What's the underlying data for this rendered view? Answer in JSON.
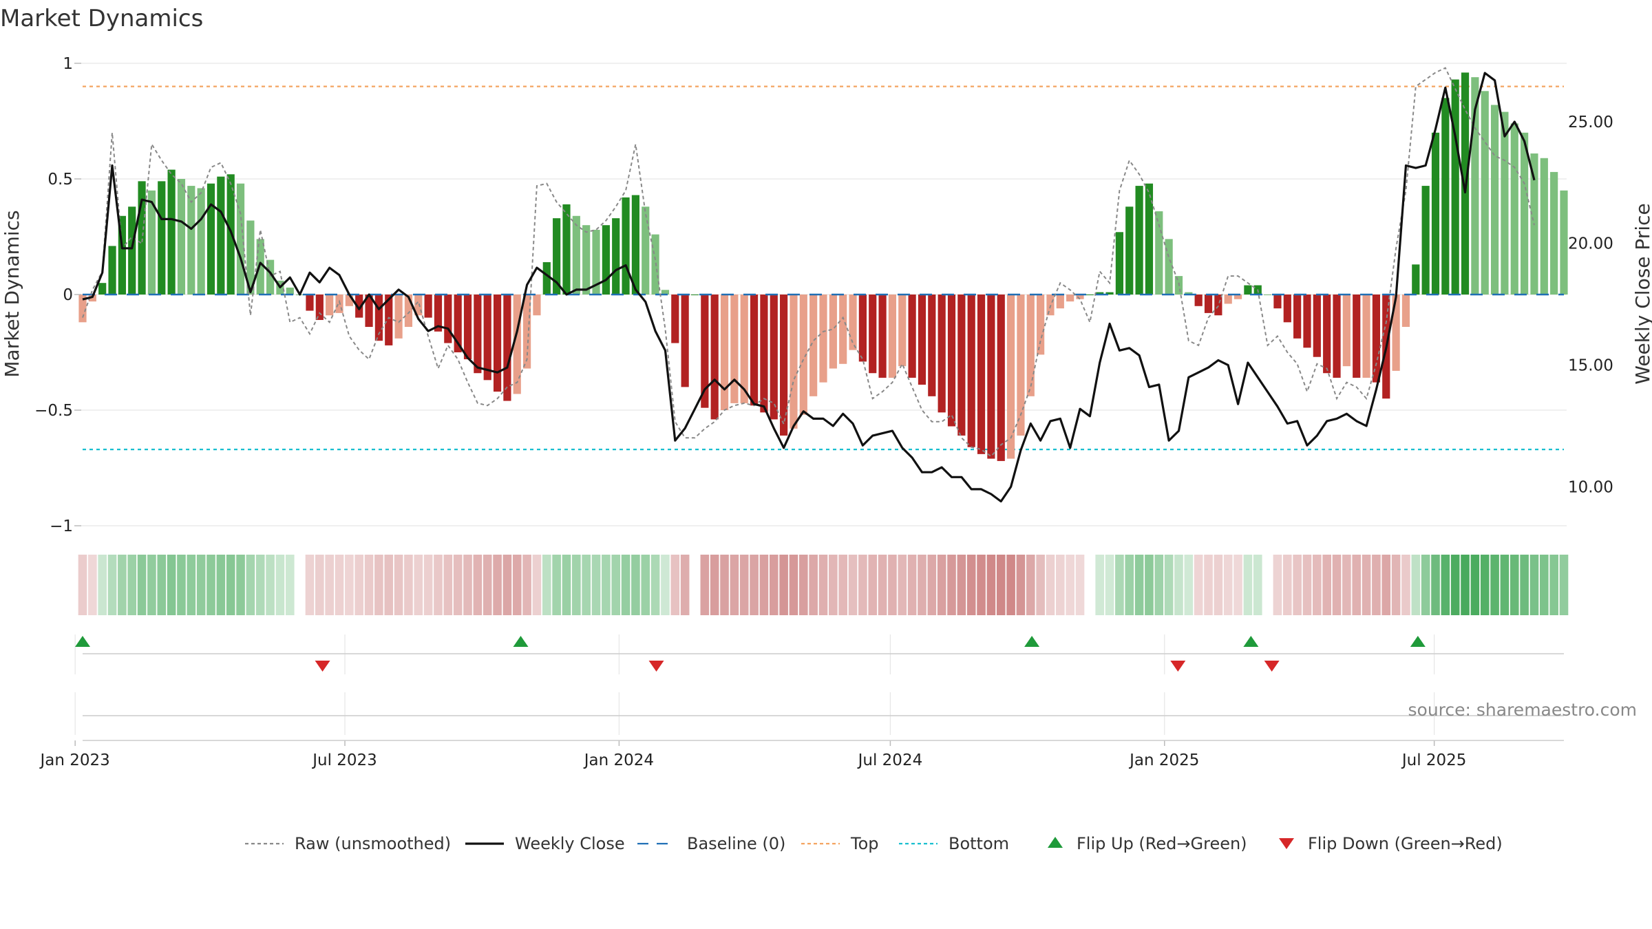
{
  "chart_data": {
    "type": "bar",
    "title": "Market Dynamics",
    "ylabel": "Market Dynamics",
    "y2label": "Weekly Close Price",
    "ylim": [
      -1,
      1
    ],
    "y2lim": [
      8.4,
      27.4
    ],
    "yticks": [
      -1,
      -0.5,
      0,
      0.5,
      1
    ],
    "ytick_labels": [
      "−1",
      "−0.5",
      "0",
      "0.5",
      "1"
    ],
    "y2ticks": [
      10,
      15,
      20,
      25
    ],
    "y2tick_labels": [
      "10.00",
      "15.00",
      "20.00",
      "25.00"
    ],
    "x_start": "2023-01-06",
    "x_end": "2025-09-26",
    "xticks": [
      "2023-01-01",
      "2023-07-01",
      "2024-01-01",
      "2024-07-01",
      "2025-01-01",
      "2025-07-01"
    ],
    "xtick_labels": [
      "Jan 2023",
      "Jul 2023",
      "Jan 2024",
      "Jul 2024",
      "Jan 2025",
      "Jul 2025"
    ],
    "top_level": 0.9,
    "bottom_level": -0.67,
    "grid": true,
    "legend_position": "bottom",
    "source_text": "source: sharemaestro.com",
    "smoothed_values": [
      -0.12,
      -0.03,
      0.05,
      0.21,
      0.34,
      0.38,
      0.49,
      0.45,
      0.49,
      0.54,
      0.5,
      0.47,
      0.46,
      0.48,
      0.51,
      0.52,
      0.48,
      0.32,
      0.24,
      0.15,
      0.06,
      0.03,
      0.0,
      -0.07,
      -0.11,
      -0.09,
      -0.08,
      -0.05,
      -0.1,
      -0.14,
      -0.2,
      -0.22,
      -0.19,
      -0.14,
      -0.09,
      -0.1,
      -0.16,
      -0.21,
      -0.25,
      -0.28,
      -0.34,
      -0.37,
      -0.42,
      -0.46,
      -0.43,
      -0.32,
      -0.09,
      0.14,
      0.33,
      0.39,
      0.34,
      0.3,
      0.28,
      0.3,
      0.33,
      0.42,
      0.43,
      0.38,
      0.26,
      0.02,
      -0.21,
      -0.4,
      0.0,
      -0.49,
      -0.54,
      -0.5,
      -0.47,
      -0.47,
      -0.48,
      -0.51,
      -0.54,
      -0.61,
      -0.58,
      -0.52,
      -0.44,
      -0.38,
      -0.32,
      -0.3,
      -0.24,
      -0.29,
      -0.34,
      -0.36,
      -0.36,
      -0.31,
      -0.36,
      -0.39,
      -0.44,
      -0.51,
      -0.57,
      -0.61,
      -0.66,
      -0.69,
      -0.71,
      -0.72,
      -0.71,
      -0.61,
      -0.44,
      -0.26,
      -0.09,
      -0.06,
      -0.03,
      -0.02,
      0.0,
      0.01,
      0.01,
      0.27,
      0.38,
      0.47,
      0.48,
      0.36,
      0.24,
      0.08,
      0.01,
      -0.05,
      -0.08,
      -0.09,
      -0.04,
      -0.02,
      0.04,
      0.04,
      0.0,
      -0.06,
      -0.12,
      -0.19,
      -0.23,
      -0.27,
      -0.34,
      -0.36,
      -0.31,
      -0.36,
      -0.36,
      -0.38,
      -0.45,
      -0.33,
      -0.14,
      0.13,
      0.47,
      0.7,
      0.85,
      0.93,
      0.96,
      0.94,
      0.88,
      0.82,
      0.79,
      0.74,
      0.7,
      0.61,
      0.59,
      0.53,
      0.45
    ],
    "raw_values": [
      -0.1,
      0.02,
      0.1,
      0.7,
      0.2,
      0.25,
      0.22,
      0.65,
      0.58,
      0.52,
      0.48,
      0.4,
      0.44,
      0.55,
      0.57,
      0.48,
      0.35,
      -0.09,
      0.28,
      0.08,
      0.1,
      -0.12,
      -0.1,
      -0.17,
      -0.08,
      -0.12,
      -0.03,
      -0.18,
      -0.24,
      -0.28,
      -0.17,
      -0.1,
      -0.12,
      -0.08,
      -0.03,
      -0.18,
      -0.32,
      -0.22,
      -0.28,
      -0.38,
      -0.47,
      -0.48,
      -0.45,
      -0.4,
      -0.38,
      -0.28,
      0.47,
      0.48,
      0.4,
      0.35,
      0.3,
      0.27,
      0.28,
      0.32,
      0.38,
      0.45,
      0.65,
      0.35,
      0.15,
      -0.15,
      -0.55,
      -0.62,
      -0.62,
      -0.58,
      -0.55,
      -0.5,
      -0.48,
      -0.47,
      -0.48,
      -0.45,
      -0.47,
      -0.56,
      -0.37,
      -0.28,
      -0.2,
      -0.16,
      -0.15,
      -0.1,
      -0.21,
      -0.28,
      -0.45,
      -0.42,
      -0.38,
      -0.3,
      -0.4,
      -0.5,
      -0.55,
      -0.55,
      -0.52,
      -0.62,
      -0.66,
      -0.67,
      -0.7,
      -0.65,
      -0.62,
      -0.52,
      -0.4,
      -0.2,
      -0.05,
      0.05,
      0.02,
      -0.02,
      -0.12,
      0.1,
      0.05,
      0.45,
      0.58,
      0.52,
      0.44,
      0.3,
      0.16,
      0.05,
      -0.2,
      -0.22,
      -0.1,
      -0.05,
      0.08,
      0.08,
      0.05,
      0.02,
      -0.22,
      -0.18,
      -0.25,
      -0.3,
      -0.42,
      -0.3,
      -0.32,
      -0.45,
      -0.38,
      -0.4,
      -0.45,
      -0.3,
      -0.12,
      0.2,
      0.45,
      0.9,
      0.93,
      0.96,
      0.98,
      0.89,
      0.8,
      0.72,
      0.66,
      0.6,
      0.58,
      0.55,
      0.48,
      0.3
    ],
    "weekly_close": [
      17.7,
      17.8,
      18.8,
      23.2,
      19.8,
      19.8,
      21.8,
      21.7,
      21.0,
      21.0,
      20.9,
      20.6,
      21.0,
      21.6,
      21.3,
      20.5,
      19.4,
      18.0,
      19.2,
      18.8,
      18.2,
      18.6,
      17.9,
      18.8,
      18.4,
      19.0,
      18.7,
      17.9,
      17.3,
      17.9,
      17.3,
      17.7,
      18.1,
      17.8,
      16.9,
      16.4,
      16.6,
      16.5,
      15.9,
      15.3,
      14.9,
      14.8,
      14.7,
      14.9,
      16.4,
      18.3,
      19.0,
      18.7,
      18.4,
      17.9,
      18.1,
      18.1,
      18.3,
      18.5,
      18.9,
      19.1,
      18.1,
      17.6,
      16.4,
      15.6,
      11.9,
      12.4,
      13.2,
      14.0,
      14.4,
      14.0,
      14.4,
      14.0,
      13.4,
      13.3,
      12.4,
      11.6,
      12.5,
      13.1,
      12.8,
      12.8,
      12.5,
      13.0,
      12.6,
      11.7,
      12.1,
      12.2,
      12.3,
      11.6,
      11.2,
      10.6,
      10.6,
      10.8,
      10.4,
      10.4,
      9.9,
      9.9,
      9.7,
      9.4,
      10.0,
      11.5,
      12.6,
      11.9,
      12.7,
      12.8,
      11.6,
      13.2,
      12.9,
      15.1,
      16.7,
      15.6,
      15.7,
      15.4,
      14.1,
      14.2,
      11.9,
      12.3,
      14.5,
      14.7,
      14.9,
      15.2,
      15.0,
      13.4,
      15.1,
      14.5,
      13.9,
      13.3,
      12.6,
      12.7,
      11.7,
      12.1,
      12.7,
      12.8,
      13.0,
      12.7,
      12.5,
      14.0,
      15.7,
      17.8,
      23.2,
      23.1,
      23.2,
      24.7,
      26.4,
      24.4,
      22.1,
      25.5,
      27.0,
      26.7,
      24.4,
      25.0,
      24.2,
      22.6
    ],
    "flips_up": [
      "2023-01-06",
      "2023-10-27",
      "2024-10-04",
      "2025-02-28",
      "2025-06-20"
    ],
    "flips_down": [
      "2023-06-16",
      "2024-01-26",
      "2025-01-10",
      "2025-03-14"
    ],
    "colors": {
      "pos_strong": "#228b22",
      "pos_light": "#7dbf7d",
      "neg_strong": "#b22222",
      "neg_light": "#e8a08a",
      "raw": "#888888",
      "close": "#111111",
      "baseline": "#1f6fb5",
      "top": "#f4a460",
      "bottom": "#17becf",
      "flip_up": "#1f9a3a",
      "flip_down": "#d62728"
    },
    "legend": [
      {
        "key": "raw",
        "label": "Raw (unsmoothed)",
        "style": "dotted-line"
      },
      {
        "key": "close",
        "label": "Weekly Close",
        "style": "solid-line"
      },
      {
        "key": "baseline",
        "label": "Baseline (0)",
        "style": "dashed-line"
      },
      {
        "key": "top",
        "label": "Top",
        "style": "dotted-line"
      },
      {
        "key": "bottom",
        "label": "Bottom",
        "style": "dotted-line"
      },
      {
        "key": "flip_up",
        "label": "Flip Up (Red→Green)",
        "style": "triangle-up"
      },
      {
        "key": "flip_down",
        "label": "Flip Down (Green→Red)",
        "style": "triangle-down"
      }
    ]
  }
}
